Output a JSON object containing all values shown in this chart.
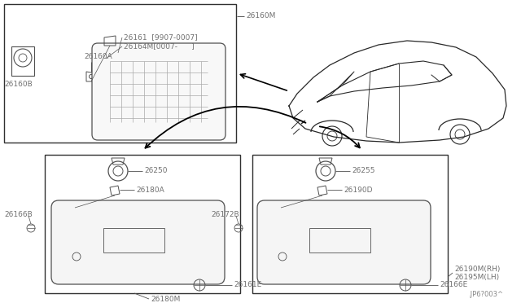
{
  "bg_color": "#ffffff",
  "line_color": "#505050",
  "text_color": "#707070",
  "box_color": "#303030",
  "labels": {
    "top_box_A": "26160A",
    "top_box_B": "26160B",
    "top_box_M": "26160M",
    "top_box_61": "26161  [9907-0007]",
    "top_box_64": "26164M[0007-      ]",
    "bl_250": "26250",
    "bl_180A": "26180A",
    "bl_166B": "26166B",
    "bl_161E": "26161E",
    "bl_180M": "26180M",
    "br_255": "26255",
    "br_190D": "26190D",
    "br_172B": "26172B",
    "br_166E": "26166E",
    "br_190M": "26190M(RH)",
    "br_195M": "26195M(LH)",
    "watermark": ".JP6?003^"
  }
}
